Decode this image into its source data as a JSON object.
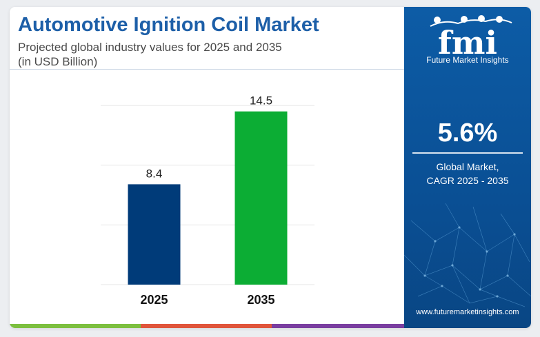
{
  "title": "Automotive Ignition Coil Market",
  "subtitle_line1": "Projected global industry values for 2025 and 2035",
  "subtitle_line2": "(in USD Billion)",
  "chart_data": {
    "type": "bar",
    "categories": [
      "2025",
      "2035"
    ],
    "values": [
      8.4,
      14.5
    ],
    "value_labels": [
      "8.4",
      "14.5"
    ],
    "ylim": [
      0,
      15
    ],
    "grid": true,
    "bar_colors": [
      "#003b79",
      "#0cad34"
    ]
  },
  "sidebar": {
    "logo_text": "fmi",
    "logo_subtitle": "Future Market Insights",
    "cagr_value": "5.6%",
    "cagr_label_line1": "Global Market,",
    "cagr_label_line2": "CAGR 2025 - 2035",
    "website": "www.futuremarketinsights.com"
  },
  "colors": {
    "title": "#1d5fa8",
    "sidebar_bg": "#0d5ca6",
    "strip": [
      "#7cbf3f",
      "#e0553b",
      "#7a3ea0"
    ]
  }
}
